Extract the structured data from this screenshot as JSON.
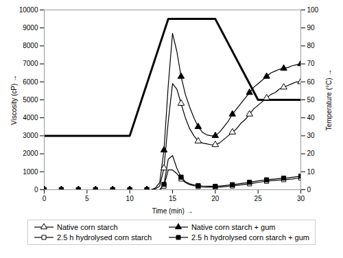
{
  "chart_data": {
    "type": "line",
    "xlabel": "Time (min)",
    "ylabel": "Viscosity (cP)",
    "y2label": "Temperature (°C)",
    "xlim": [
      0,
      30
    ],
    "xticks": [
      0,
      5,
      10,
      15,
      20,
      25,
      30
    ],
    "ylim": [
      0,
      10000
    ],
    "yticks": [
      0,
      1000,
      2000,
      3000,
      4000,
      5000,
      6000,
      7000,
      8000,
      9000,
      10000
    ],
    "y2lim": [
      0,
      100
    ],
    "y2ticks": [
      0,
      10,
      20,
      30,
      40,
      50,
      60,
      70,
      80,
      90,
      100
    ],
    "legend": "bottom",
    "series": [
      {
        "axis": "y2",
        "color": "black",
        "x": [
          0,
          10,
          14.5,
          20,
          25,
          30
        ],
        "values": [
          30,
          30,
          95,
          95,
          50,
          50
        ]
      },
      {
        "name": "Native corn starch",
        "color": "black",
        "marker": "triangle-open",
        "x": [
          0,
          0.5,
          1,
          1.5,
          2,
          2.5,
          3,
          3.5,
          4,
          4.5,
          5,
          5.5,
          6,
          6.5,
          7,
          7.5,
          8,
          8.5,
          9,
          9.5,
          10,
          10.5,
          11,
          11.5,
          12,
          12.5,
          13,
          13.5,
          14,
          14.5,
          15,
          15.5,
          16,
          16.5,
          17,
          17.5,
          18,
          18.5,
          19,
          19.5,
          20,
          20.5,
          21,
          21.5,
          22,
          22.5,
          23,
          23.5,
          24,
          24.5,
          25,
          25.5,
          26,
          26.5,
          27,
          27.5,
          28,
          28.5,
          29,
          29.5,
          30
        ],
        "values": [
          0,
          0,
          0,
          0,
          0,
          0,
          0,
          0,
          0,
          0,
          0,
          0,
          0,
          0,
          0,
          0,
          0,
          0,
          0,
          0,
          0,
          0,
          0,
          0,
          0,
          0,
          50,
          200,
          1200,
          3800,
          5900,
          5600,
          4800,
          4000,
          3400,
          3000,
          2700,
          2600,
          2550,
          2500,
          2500,
          2600,
          2800,
          3000,
          3200,
          3400,
          3700,
          3900,
          4200,
          4500,
          4700,
          4900,
          5100,
          5300,
          5400,
          5600,
          5700,
          5800,
          5900,
          6000,
          6000
        ]
      },
      {
        "name": "Native corn starch + gum",
        "color": "black",
        "marker": "triangle",
        "x": [
          0,
          0.5,
          1,
          1.5,
          2,
          2.5,
          3,
          3.5,
          4,
          4.5,
          5,
          5.5,
          6,
          6.5,
          7,
          7.5,
          8,
          8.5,
          9,
          9.5,
          10,
          10.5,
          11,
          11.5,
          12,
          12.5,
          13,
          13.5,
          14,
          14.5,
          15,
          15.5,
          16,
          16.5,
          17,
          17.5,
          18,
          18.5,
          19,
          19.5,
          20,
          20.5,
          21,
          21.5,
          22,
          22.5,
          23,
          23.5,
          24,
          24.5,
          25,
          25.5,
          26,
          26.5,
          27,
          27.5,
          28,
          28.5,
          29,
          29.5,
          30
        ],
        "values": [
          0,
          0,
          0,
          0,
          0,
          0,
          0,
          0,
          0,
          0,
          0,
          0,
          0,
          0,
          0,
          0,
          0,
          0,
          0,
          0,
          0,
          0,
          0,
          0,
          0,
          0,
          100,
          400,
          2200,
          5800,
          8700,
          7700,
          6300,
          5300,
          4600,
          4000,
          3500,
          3200,
          3050,
          3000,
          3000,
          3200,
          3500,
          3800,
          4200,
          4500,
          4800,
          5100,
          5400,
          5700,
          5900,
          6100,
          6300,
          6500,
          6600,
          6700,
          6750,
          6800,
          6900,
          6950,
          7000
        ]
      },
      {
        "name": "2.5 h hydrolysed corn starch",
        "color": "black",
        "marker": "square-open",
        "x": [
          0,
          0.5,
          1,
          1.5,
          2,
          2.5,
          3,
          3.5,
          4,
          4.5,
          5,
          5.5,
          6,
          6.5,
          7,
          7.5,
          8,
          8.5,
          9,
          9.5,
          10,
          10.5,
          11,
          11.5,
          12,
          12.5,
          13,
          13.5,
          14,
          14.5,
          15,
          15.5,
          16,
          16.5,
          17,
          17.5,
          18,
          18.5,
          19,
          19.5,
          20,
          20.5,
          21,
          21.5,
          22,
          22.5,
          23,
          23.5,
          24,
          24.5,
          25,
          25.5,
          26,
          26.5,
          27,
          27.5,
          28,
          28.5,
          29,
          29.5,
          30
        ],
        "values": [
          0,
          0,
          0,
          0,
          0,
          0,
          0,
          0,
          0,
          0,
          0,
          0,
          0,
          0,
          0,
          0,
          0,
          0,
          0,
          0,
          0,
          0,
          0,
          0,
          0,
          0,
          0,
          0,
          200,
          1100,
          1100,
          900,
          600,
          400,
          280,
          220,
          180,
          160,
          150,
          145,
          140,
          150,
          170,
          190,
          210,
          240,
          270,
          300,
          330,
          370,
          410,
          440,
          470,
          500,
          520,
          540,
          560,
          580,
          600,
          630,
          650
        ]
      },
      {
        "name": "2.5 h hydrolysed corn starch + gum",
        "color": "black",
        "marker": "square",
        "x": [
          0,
          0.5,
          1,
          1.5,
          2,
          2.5,
          3,
          3.5,
          4,
          4.5,
          5,
          5.5,
          6,
          6.5,
          7,
          7.5,
          8,
          8.5,
          9,
          9.5,
          10,
          10.5,
          11,
          11.5,
          12,
          12.5,
          13,
          13.5,
          14,
          14.5,
          15,
          15.5,
          16,
          16.5,
          17,
          17.5,
          18,
          18.5,
          19,
          19.5,
          20,
          20.5,
          21,
          21.5,
          22,
          22.5,
          23,
          23.5,
          24,
          24.5,
          25,
          25.5,
          26,
          26.5,
          27,
          27.5,
          28,
          28.5,
          29,
          29.5,
          30
        ],
        "values": [
          0,
          0,
          0,
          0,
          0,
          0,
          0,
          0,
          0,
          0,
          0,
          0,
          0,
          0,
          0,
          0,
          0,
          0,
          0,
          0,
          0,
          0,
          0,
          0,
          0,
          0,
          0,
          0,
          300,
          1700,
          1900,
          1200,
          700,
          450,
          330,
          270,
          230,
          210,
          200,
          195,
          190,
          205,
          225,
          250,
          280,
          310,
          345,
          380,
          415,
          450,
          490,
          520,
          550,
          575,
          600,
          625,
          645,
          665,
          695,
          720,
          750
        ]
      }
    ]
  }
}
